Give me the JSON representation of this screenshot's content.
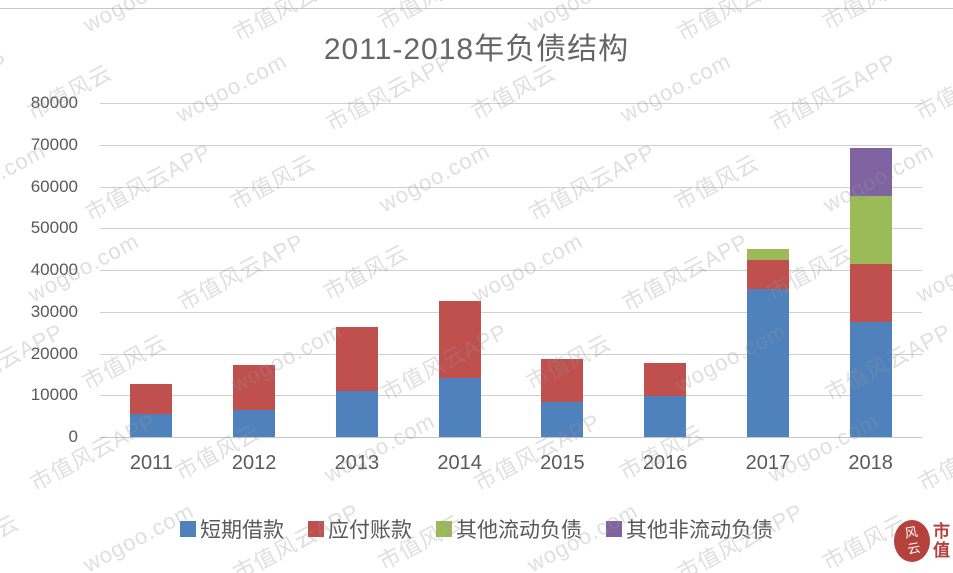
{
  "chart_data": {
    "type": "bar",
    "stacked": true,
    "title": "2011-2018年负债结构",
    "categories": [
      "2011",
      "2012",
      "2013",
      "2014",
      "2015",
      "2016",
      "2017",
      "2018"
    ],
    "series": [
      {
        "name": "短期借款",
        "color": "#4F81BD",
        "values": [
          5500,
          6500,
          11000,
          14200,
          8500,
          9800,
          35500,
          27500
        ]
      },
      {
        "name": "应付账款",
        "color": "#C0504D",
        "values": [
          7300,
          10800,
          15300,
          18300,
          10300,
          7900,
          7000,
          14000
        ]
      },
      {
        "name": "其他流动负债",
        "color": "#9BBB59",
        "values": [
          0,
          0,
          0,
          0,
          0,
          0,
          2500,
          16300
        ]
      },
      {
        "name": "其他非流动负债",
        "color": "#8064A2",
        "values": [
          0,
          0,
          0,
          0,
          0,
          0,
          0,
          11400
        ]
      }
    ],
    "xlabel": "",
    "ylabel": "",
    "ylim": [
      0,
      80000
    ],
    "ytick_interval": 10000,
    "ytick_labels": [
      "0",
      "10000",
      "20000",
      "30000",
      "40000",
      "50000",
      "60000",
      "70000",
      "80000"
    ],
    "grid": true,
    "legend_position": "bottom"
  },
  "watermark": {
    "texts": [
      "市值风云",
      "wogoo.com",
      "市值风云APP"
    ]
  },
  "logo": {
    "seal_text": "风云",
    "side_text": "市值"
  },
  "colors": {
    "gridline": "#cfcfcf",
    "axis_text": "#595959",
    "title_text": "#666666",
    "logo_red": "#b5413c"
  }
}
